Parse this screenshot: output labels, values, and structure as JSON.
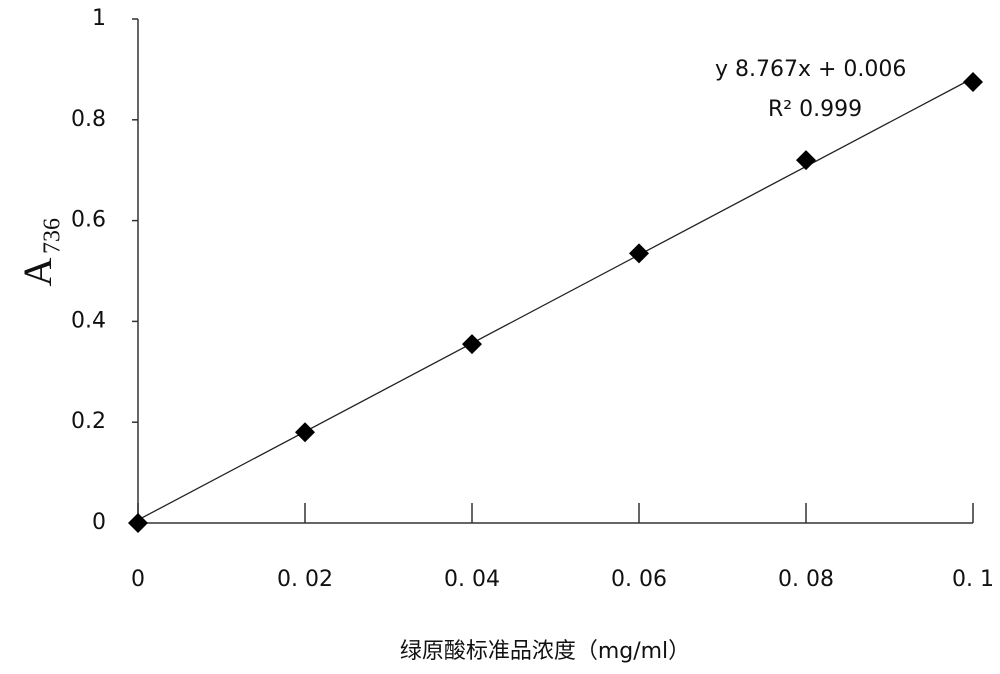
{
  "chart_data": {
    "type": "scatter",
    "x": [
      0,
      0.02,
      0.04,
      0.06,
      0.08,
      0.1
    ],
    "values": [
      0,
      0.18,
      0.355,
      0.535,
      0.72,
      0.875
    ],
    "color": "#000000",
    "xlim": [
      0,
      0.1
    ],
    "ylim": [
      0,
      1
    ],
    "xticks": [
      0,
      {
        "value": 0.02,
        "label": "0. 02"
      },
      {
        "value": 0.04,
        "label": "0. 04"
      },
      {
        "value": 0.06,
        "label": "0. 06"
      },
      {
        "value": 0.08,
        "label": "0. 08"
      },
      {
        "value": 0.1,
        "label": "0. 1"
      }
    ],
    "yticks": [
      0,
      0.2,
      0.4,
      0.6,
      0.8,
      1
    ],
    "x_label": "绿原酸标准品浓度（mg/ml）",
    "y_label": {
      "text": "A",
      "subscript": "736"
    },
    "trendline": {
      "slope": 8.767,
      "intercept": 0.006
    },
    "annotations": [
      "y  8.767x + 0.006",
      "R²  0.999"
    ]
  }
}
